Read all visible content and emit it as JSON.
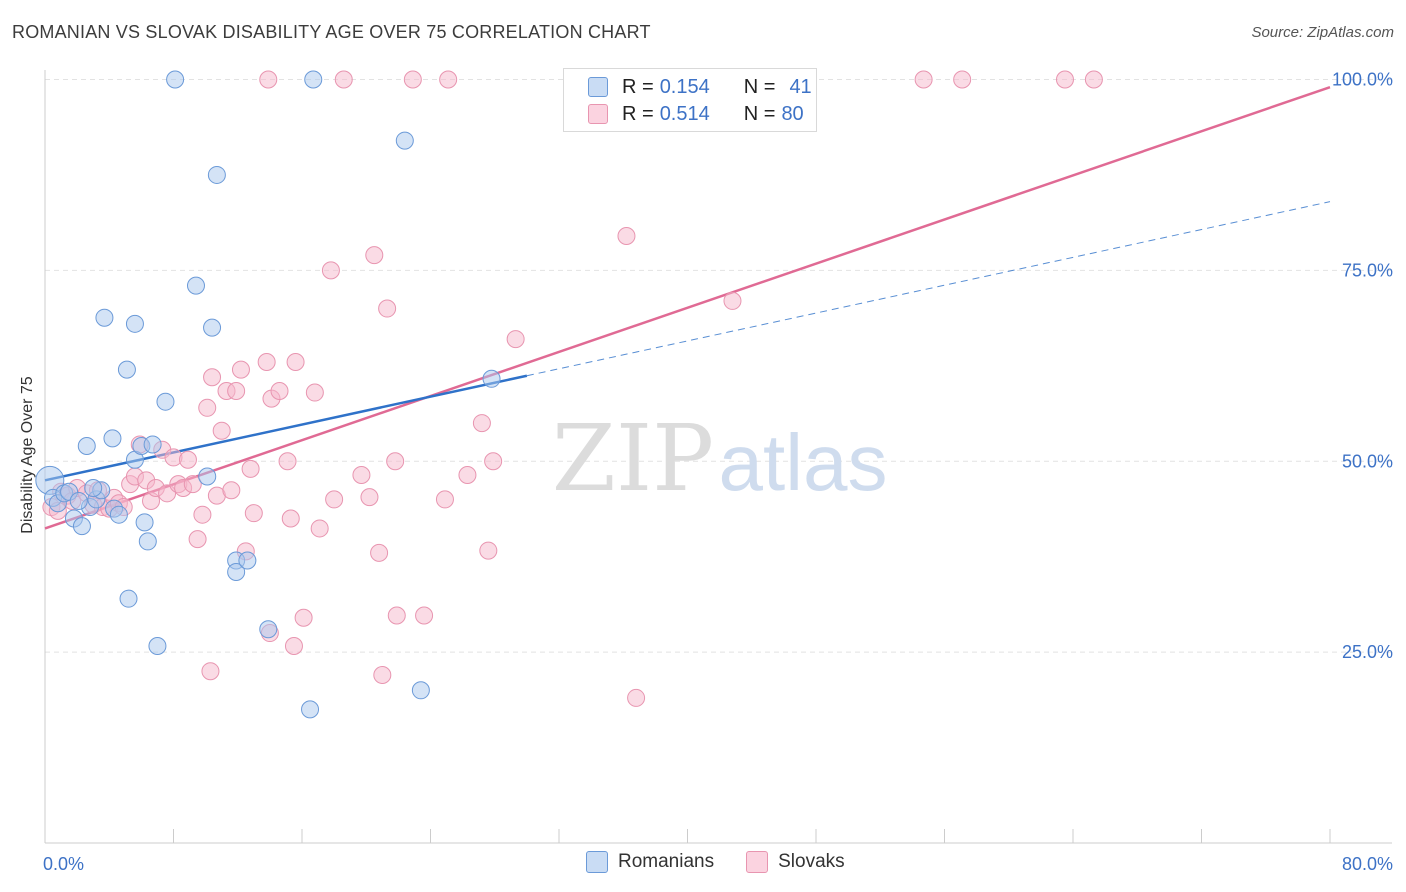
{
  "header": {
    "title": "ROMANIAN VS SLOVAK DISABILITY AGE OVER 75 CORRELATION CHART",
    "source": "Source: ZipAtlas.com"
  },
  "watermark": {
    "zip": "ZIP",
    "atlas": "atlas"
  },
  "legend_top": [
    {
      "r_label": "R =",
      "r_value": "0.154",
      "n_label": "N =",
      "n_value": "41",
      "color": "#a9c8ee"
    },
    {
      "r_label": "R =",
      "r_value": "0.514",
      "n_label": "N =",
      "n_value": "80",
      "color": "#f6b8cb"
    }
  ],
  "legend_bottom": [
    {
      "label": "Romanians",
      "color": "#a9c8ee"
    },
    {
      "label": "Slovaks",
      "color": "#f6b8cb"
    }
  ],
  "colors": {
    "blue_fill": "#a9c8ee",
    "blue_stroke": "#6b9ad8",
    "blue_line": "#2f72c9",
    "pink_fill": "#f6b8cb",
    "pink_stroke": "#e895b0",
    "pink_line": "#e06a94",
    "tick_text": "#3d72c6",
    "grid": "#e2e2e2"
  },
  "chart_data": {
    "type": "scatter",
    "title": "ROMANIAN VS SLOVAK DISABILITY AGE OVER 75 CORRELATION CHART",
    "xlabel": "",
    "ylabel": "Disability Age Over 75",
    "xlim": [
      0,
      80
    ],
    "ylim": [
      0,
      105
    ],
    "x_tick_labels": [
      "0.0%",
      "80.0%"
    ],
    "y_ticks": [
      25,
      50,
      75,
      100
    ],
    "y_tick_labels": [
      "25.0%",
      "50.0%",
      "75.0%",
      "100.0%"
    ],
    "grid": true,
    "legend_position": "top-center",
    "series": [
      {
        "name": "Romanians",
        "r": 0.154,
        "n": 41,
        "trend": {
          "x0": 0,
          "y0": 47.5,
          "x1": 30,
          "y1": 61.2,
          "dashed_to_x": 80,
          "dashed_to_y": 84
        },
        "points": [
          [
            0.3,
            47.5
          ],
          [
            0.5,
            45.2
          ],
          [
            0.8,
            44.5
          ],
          [
            1.2,
            45.8
          ],
          [
            1.5,
            46.0
          ],
          [
            1.8,
            42.5
          ],
          [
            2.3,
            41.5
          ],
          [
            2.6,
            52.0
          ],
          [
            2.8,
            44.0
          ],
          [
            3.2,
            45.0
          ],
          [
            3.5,
            46.2
          ],
          [
            4.2,
            53.0
          ],
          [
            4.3,
            43.8
          ],
          [
            4.6,
            43.0
          ],
          [
            3.7,
            68.8
          ],
          [
            5.1,
            62.0
          ],
          [
            5.6,
            50.2
          ],
          [
            5.6,
            68.0
          ],
          [
            6.0,
            52.0
          ],
          [
            6.2,
            42.0
          ],
          [
            6.4,
            39.5
          ],
          [
            6.7,
            52.2
          ],
          [
            7.5,
            57.8
          ],
          [
            8.1,
            100.0
          ],
          [
            9.4,
            73.0
          ],
          [
            10.1,
            48.0
          ],
          [
            10.4,
            67.5
          ],
          [
            10.7,
            87.5
          ],
          [
            11.9,
            37.0
          ],
          [
            11.9,
            35.5
          ],
          [
            12.6,
            37.0
          ],
          [
            13.9,
            28.0
          ],
          [
            16.5,
            17.5
          ],
          [
            16.7,
            100.0
          ],
          [
            22.4,
            92.0
          ],
          [
            23.4,
            20.0
          ],
          [
            27.8,
            60.8
          ],
          [
            5.2,
            32.0
          ],
          [
            7.0,
            25.8
          ],
          [
            2.1,
            44.8
          ],
          [
            3.0,
            46.5
          ]
        ]
      },
      {
        "name": "Slovaks",
        "r": 0.514,
        "n": 80,
        "trend": {
          "x0": 0,
          "y0": 41.2,
          "x1": 80,
          "y1": 99.0
        },
        "points": [
          [
            0.4,
            44.0
          ],
          [
            0.8,
            43.5
          ],
          [
            1.0,
            46.0
          ],
          [
            1.4,
            45.5
          ],
          [
            1.7,
            44.8
          ],
          [
            2.0,
            46.5
          ],
          [
            2.6,
            45.8
          ],
          [
            3.0,
            44.3
          ],
          [
            3.3,
            46.2
          ],
          [
            3.6,
            44.0
          ],
          [
            4.0,
            43.8
          ],
          [
            4.3,
            45.2
          ],
          [
            4.6,
            44.5
          ],
          [
            4.9,
            44.0
          ],
          [
            5.3,
            47.0
          ],
          [
            5.6,
            48.0
          ],
          [
            5.9,
            52.2
          ],
          [
            6.3,
            47.5
          ],
          [
            6.6,
            44.8
          ],
          [
            6.9,
            46.5
          ],
          [
            7.3,
            51.5
          ],
          [
            7.6,
            45.8
          ],
          [
            8.0,
            50.5
          ],
          [
            8.3,
            47.0
          ],
          [
            8.6,
            46.5
          ],
          [
            8.9,
            50.2
          ],
          [
            9.2,
            47.0
          ],
          [
            9.5,
            39.8
          ],
          [
            9.8,
            43.0
          ],
          [
            10.1,
            57.0
          ],
          [
            10.4,
            61.0
          ],
          [
            10.7,
            45.5
          ],
          [
            11.0,
            54.0
          ],
          [
            11.3,
            59.2
          ],
          [
            11.6,
            46.2
          ],
          [
            11.9,
            59.2
          ],
          [
            12.2,
            62.0
          ],
          [
            12.5,
            38.2
          ],
          [
            12.8,
            49.0
          ],
          [
            13.0,
            43.2
          ],
          [
            13.8,
            63.0
          ],
          [
            14.1,
            58.2
          ],
          [
            14.6,
            59.2
          ],
          [
            15.1,
            50.0
          ],
          [
            15.3,
            42.5
          ],
          [
            15.6,
            63.0
          ],
          [
            16.1,
            29.5
          ],
          [
            16.8,
            59.0
          ],
          [
            17.1,
            41.2
          ],
          [
            17.8,
            75.0
          ],
          [
            18.0,
            45.0
          ],
          [
            19.7,
            48.2
          ],
          [
            20.2,
            45.3
          ],
          [
            20.5,
            77.0
          ],
          [
            20.8,
            38.0
          ],
          [
            21.0,
            22.0
          ],
          [
            21.3,
            70.0
          ],
          [
            21.8,
            50.0
          ],
          [
            21.9,
            29.8
          ],
          [
            23.6,
            29.8
          ],
          [
            24.9,
            45.0
          ],
          [
            26.3,
            48.2
          ],
          [
            27.2,
            55.0
          ],
          [
            27.6,
            38.3
          ],
          [
            27.9,
            50.0
          ],
          [
            29.3,
            66.0
          ],
          [
            36.2,
            79.5
          ],
          [
            36.8,
            19.0
          ],
          [
            42.8,
            71.0
          ],
          [
            54.7,
            100.0
          ],
          [
            57.1,
            100.0
          ],
          [
            63.5,
            100.0
          ],
          [
            65.3,
            100.0
          ],
          [
            22.9,
            100.0
          ],
          [
            25.1,
            100.0
          ],
          [
            18.6,
            100.0
          ],
          [
            14.0,
            27.5
          ],
          [
            10.3,
            22.5
          ],
          [
            13.9,
            100.0
          ],
          [
            15.5,
            25.8
          ]
        ]
      }
    ]
  }
}
